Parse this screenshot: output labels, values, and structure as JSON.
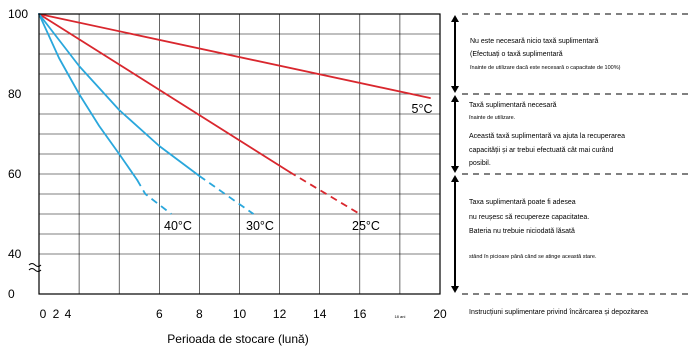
{
  "chart_data": {
    "type": "line",
    "title": "",
    "xlabel": "Perioada de stocare (lună)",
    "ylabel": "",
    "xlim": [
      0,
      20
    ],
    "ylim": [
      35,
      100
    ],
    "y_axis_break": true,
    "grid": true,
    "x_ticks": [
      "0",
      "2",
      "4",
      "6",
      "8",
      "10",
      "12",
      "14",
      "16",
      "18 ani",
      "20"
    ],
    "y_ticks": [
      "100",
      "80",
      "60",
      "40",
      "0"
    ],
    "series": [
      {
        "name": "5°C",
        "color": "#d9272e",
        "solid": [
          [
            0,
            100
          ],
          [
            19.5,
            79
          ]
        ],
        "dashed": []
      },
      {
        "name": "25°C",
        "color": "#d9272e",
        "solid": [
          [
            0,
            100
          ],
          [
            12.5,
            60.5
          ]
        ],
        "dashed": [
          [
            12.5,
            60.5
          ],
          [
            16,
            50
          ]
        ]
      },
      {
        "name": "30°C",
        "color": "#2aa7dc",
        "solid": [
          [
            0,
            100
          ],
          [
            2,
            87
          ],
          [
            4,
            76
          ],
          [
            6,
            67
          ],
          [
            8,
            59.5
          ]
        ],
        "dashed": [
          [
            8,
            59.5
          ],
          [
            10.7,
            50
          ]
        ]
      },
      {
        "name": "40°C",
        "color": "#2aa7dc",
        "solid": [
          [
            0,
            100
          ],
          [
            1,
            89
          ],
          [
            2,
            80
          ],
          [
            3,
            72
          ],
          [
            4,
            65
          ],
          [
            4.9,
            58.5
          ]
        ],
        "dashed": [
          [
            4.9,
            58.5
          ],
          [
            5.3,
            55
          ],
          [
            6.6,
            50
          ]
        ]
      }
    ],
    "annotations": [
      {
        "lines": [
          "Nu este necesară nicio taxă suplimentară",
          "(Efectuați o taxă suplimentară",
          "înainte de utilizare dacă este necesară o capacitate de 100%)"
        ]
      },
      {
        "lines": [
          "Taxă suplimentară necesară",
          "înainte de utilizare.",
          "Această taxă suplimentară va ajuta la recuperarea",
          "capacității și ar trebui efectuată cât mai curând",
          "posibil."
        ]
      },
      {
        "lines": [
          "Taxa suplimentară poate fi adesea",
          "nu reușesc să recupereze capacitatea.",
          "Bateria nu trebuie niciodată lăsată",
          "stând în picioare până când se atinge această stare."
        ]
      }
    ],
    "footer_note": "Instrucțiuni suplimentare privind încărcarea și depozitarea"
  }
}
